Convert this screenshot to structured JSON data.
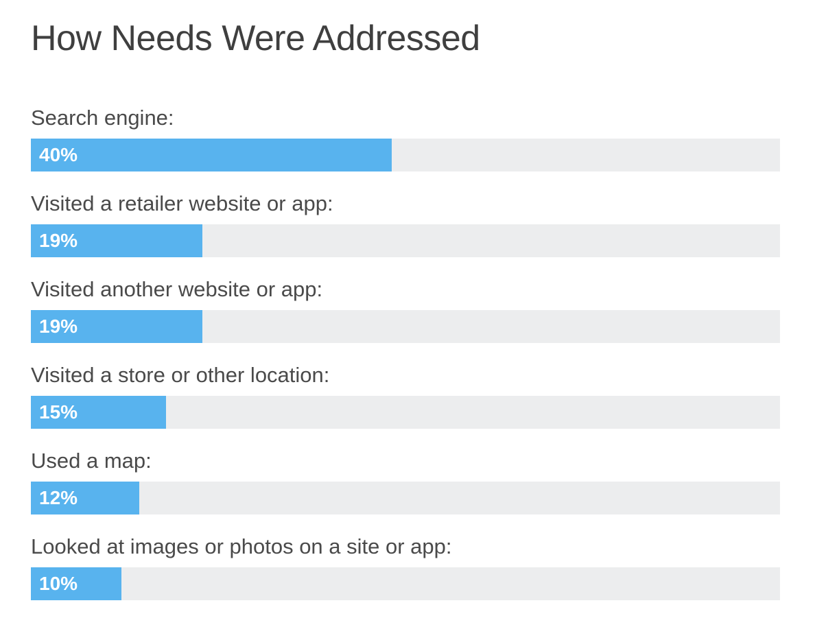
{
  "chart_data": {
    "type": "bar",
    "title": "How Needs Were Addressed",
    "categories": [
      "Search engine:",
      "Visited a retailer website or app:",
      "Visited another website or app:",
      "Visited a store or other location:",
      "Used a map:",
      "Looked at images or photos on a site or app:"
    ],
    "values": [
      40,
      19,
      19,
      15,
      12,
      10
    ],
    "value_labels": [
      "40%",
      "19%",
      "19%",
      "15%",
      "12%",
      "10%"
    ],
    "xlim": [
      0,
      83
    ],
    "orientation": "horizontal",
    "colors": {
      "bar": "#58b3ee",
      "track": "#ecedee",
      "value_text": "#ffffff",
      "label_text": "#4a4a4a"
    }
  }
}
